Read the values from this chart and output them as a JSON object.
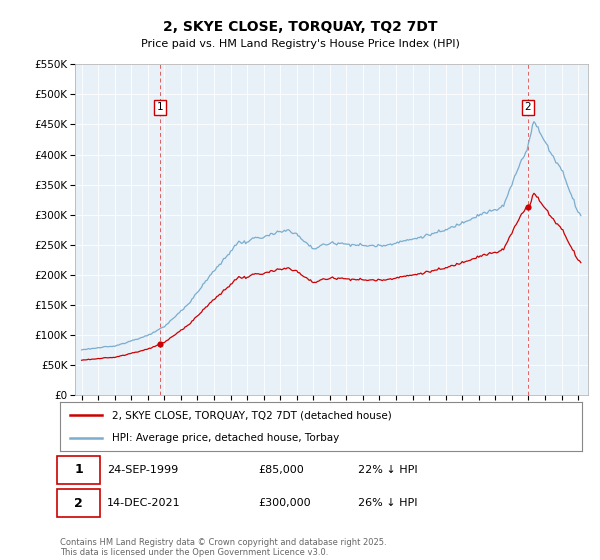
{
  "title": "2, SKYE CLOSE, TORQUAY, TQ2 7DT",
  "subtitle": "Price paid vs. HM Land Registry's House Price Index (HPI)",
  "legend_line1": "2, SKYE CLOSE, TORQUAY, TQ2 7DT (detached house)",
  "legend_line2": "HPI: Average price, detached house, Torbay",
  "sale1_date": "24-SEP-1999",
  "sale1_price": "£85,000",
  "sale1_hpi": "22% ↓ HPI",
  "sale2_date": "14-DEC-2021",
  "sale2_price": "£300,000",
  "sale2_hpi": "26% ↓ HPI",
  "footer": "Contains HM Land Registry data © Crown copyright and database right 2025.\nThis data is licensed under the Open Government Licence v3.0.",
  "red_color": "#cc0000",
  "blue_color": "#7aadce",
  "bg_color": "#e8f0f8",
  "sale1_year": 1999.73,
  "sale2_year": 2021.95,
  "ylim_max": 550000,
  "xlim_min": 1994.6,
  "xlim_max": 2025.6
}
